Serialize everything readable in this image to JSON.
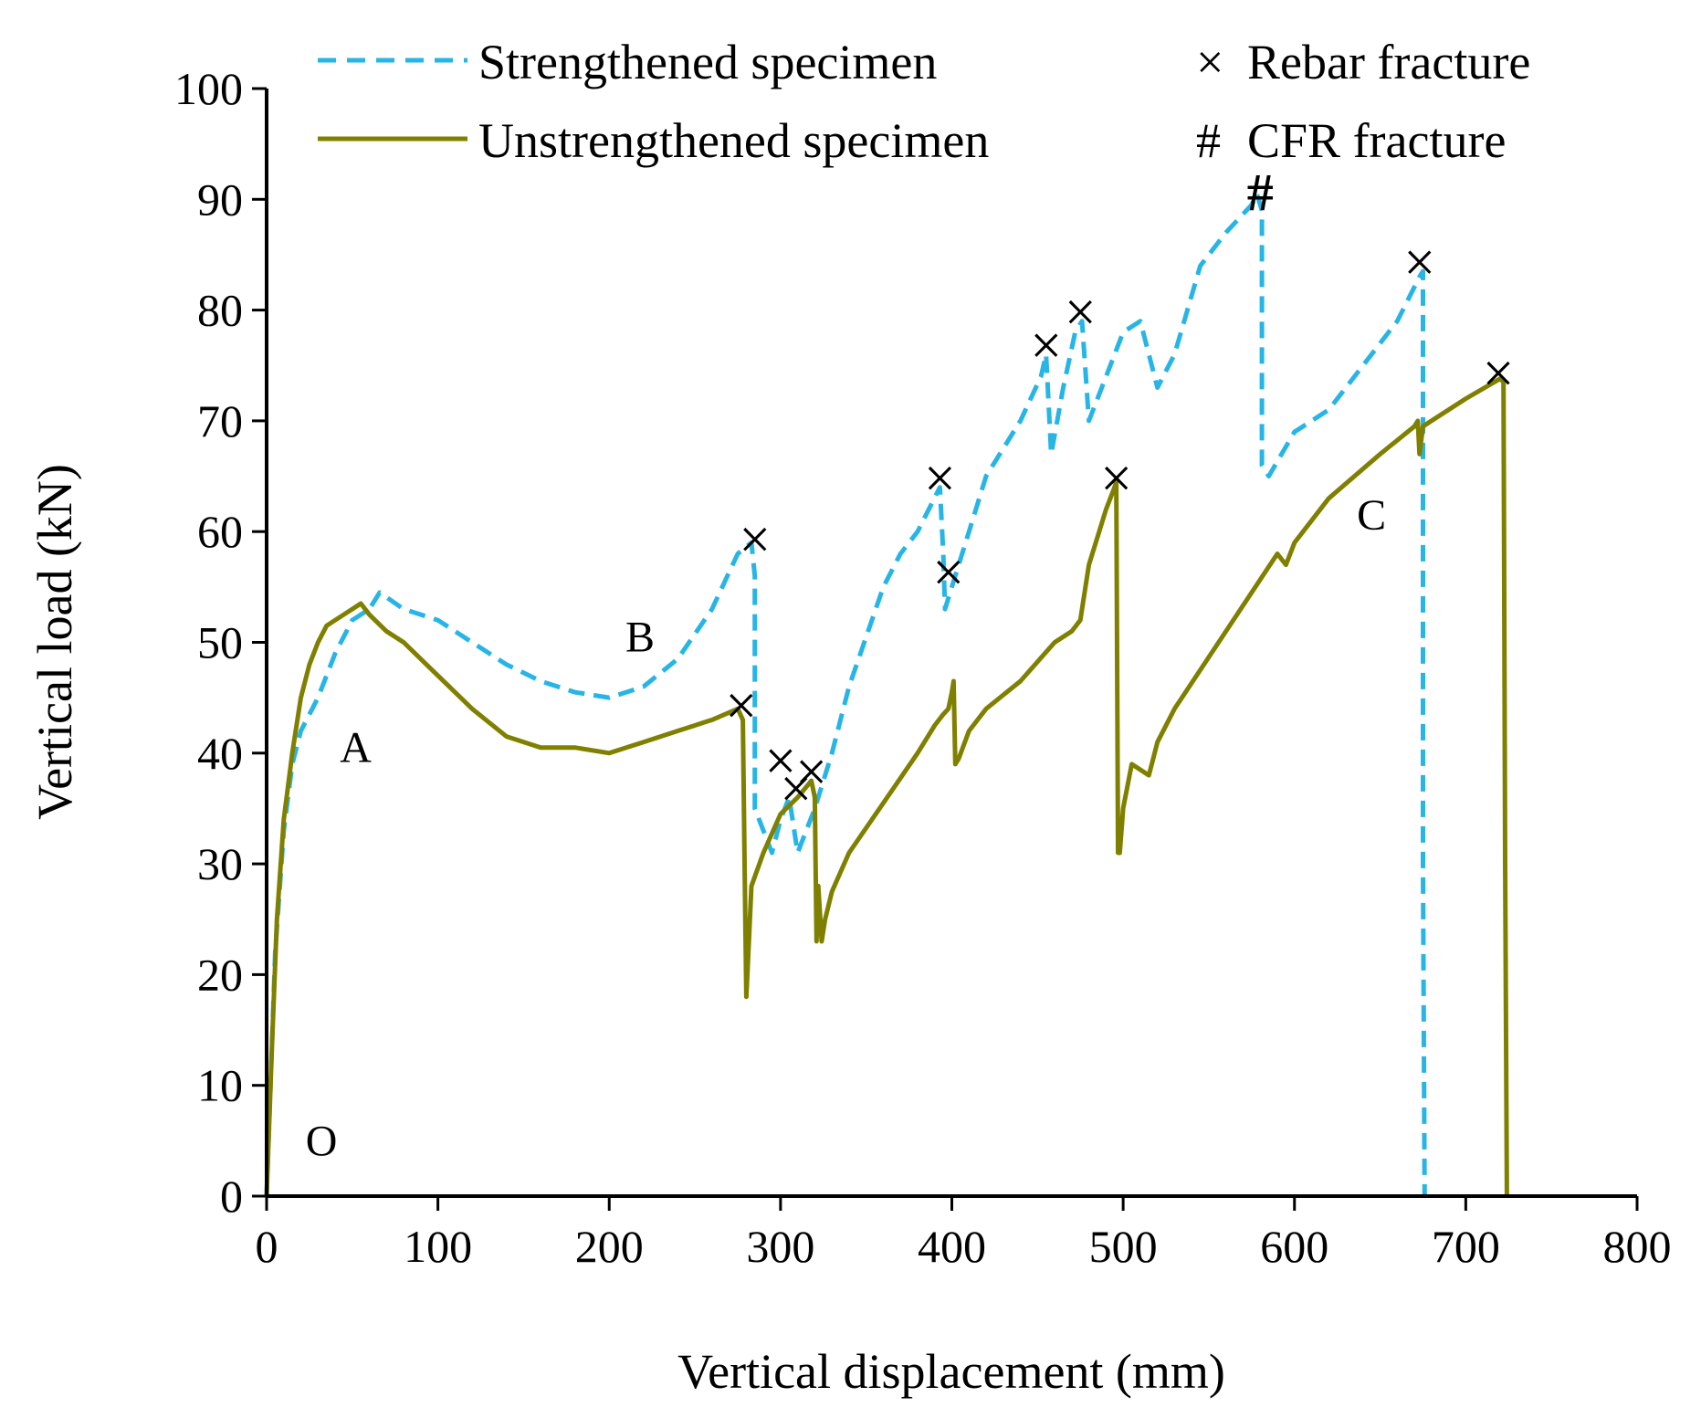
{
  "chart_data": {
    "type": "line",
    "title": "",
    "xlabel": "Vertical displacement (mm)",
    "ylabel": "Vertical load (kN)",
    "xlim": [
      0,
      800
    ],
    "ylim": [
      0,
      100
    ],
    "xticks": [
      0,
      100,
      200,
      300,
      400,
      500,
      600,
      700,
      800
    ],
    "yticks": [
      0,
      10,
      20,
      30,
      40,
      50,
      60,
      70,
      80,
      90,
      100
    ],
    "grid": false,
    "legend": {
      "position": "top",
      "series_entries": [
        "Strengthened specimen",
        "Unstrengthened specimen"
      ],
      "marker_entries": [
        {
          "symbol": "×",
          "label": "Rebar fracture"
        },
        {
          "symbol": "#",
          "label": "CFR fracture"
        }
      ]
    },
    "series": [
      {
        "name": "Strengthened specimen",
        "style": "dashed",
        "color": "#27B5E6",
        "x": [
          0,
          5,
          10,
          15,
          20,
          30,
          40,
          50,
          60,
          66,
          80,
          100,
          120,
          140,
          160,
          180,
          200,
          220,
          240,
          260,
          275,
          283,
          285,
          285,
          290,
          295,
          300,
          305,
          310,
          315,
          320,
          330,
          340,
          360,
          370,
          380,
          393,
          395,
          396,
          400,
          410,
          420,
          440,
          452,
          455,
          458,
          465,
          472,
          476,
          480,
          490,
          500,
          510,
          520,
          530,
          545,
          560,
          575,
          578,
          581,
          581,
          585,
          600,
          620,
          640,
          660,
          673,
          675,
          675,
          676
        ],
        "y": [
          0,
          22,
          33,
          39,
          42,
          45,
          49,
          52,
          53,
          54.5,
          53,
          52,
          50,
          48,
          46.5,
          45.5,
          45,
          46,
          48.5,
          53,
          58,
          59,
          56,
          35,
          33,
          31,
          34,
          36,
          31,
          33,
          35,
          40,
          46,
          55,
          58,
          60,
          64,
          58,
          53,
          55,
          60,
          65,
          70,
          74,
          76,
          67,
          73,
          78,
          79,
          70,
          74,
          78,
          79,
          73,
          76,
          84,
          87,
          89.5,
          90.5,
          89,
          66,
          65,
          69,
          71,
          75,
          79,
          83,
          83.5,
          30,
          0
        ]
      },
      {
        "name": "Unstrengthened specimen",
        "style": "solid",
        "color": "#808000",
        "x": [
          0,
          3,
          6,
          10,
          15,
          20,
          25,
          30,
          35,
          40,
          50,
          55,
          60,
          70,
          80,
          100,
          120,
          140,
          160,
          170,
          180,
          200,
          210,
          220,
          240,
          260,
          275,
          278,
          279,
          280,
          283,
          290,
          300,
          310,
          318,
          320,
          321,
          322,
          324,
          326,
          330,
          340,
          360,
          380,
          390,
          395,
          398,
          400,
          401,
          402,
          404,
          410,
          420,
          440,
          460,
          470,
          475,
          480,
          490,
          495,
          496,
          497,
          498,
          500,
          505,
          510,
          515,
          520,
          530,
          560,
          590,
          595,
          600,
          620,
          650,
          670,
          672,
          673,
          675,
          680,
          700,
          720,
          722,
          723,
          724
        ],
        "y": [
          0,
          13,
          25,
          34,
          40,
          45,
          48,
          50,
          51.5,
          52,
          53,
          53.5,
          52.5,
          51,
          50,
          47,
          44,
          41.5,
          40.5,
          40.5,
          40.5,
          40,
          40.5,
          41,
          42,
          43,
          44,
          43,
          30,
          18,
          28,
          31,
          34.5,
          36,
          37.5,
          36,
          23,
          28,
          23,
          25,
          27.5,
          31,
          35.5,
          40,
          42.5,
          43.5,
          44,
          45.5,
          46.5,
          39,
          39.5,
          42,
          44,
          46.5,
          50,
          51,
          52,
          57,
          62,
          64,
          64.5,
          31,
          31,
          35,
          39,
          38.5,
          38,
          41,
          44,
          51,
          58,
          57,
          59,
          63,
          67,
          69.5,
          70,
          67,
          69.5,
          70,
          72,
          73.8,
          73.5,
          30,
          0
        ]
      }
    ],
    "markers": [
      {
        "symbol": "×",
        "x": 277,
        "y": 44
      },
      {
        "symbol": "×",
        "x": 285,
        "y": 59
      },
      {
        "symbol": "×",
        "x": 300,
        "y": 39
      },
      {
        "symbol": "×",
        "x": 309,
        "y": 36.5
      },
      {
        "symbol": "×",
        "x": 318,
        "y": 38
      },
      {
        "symbol": "×",
        "x": 393,
        "y": 64.5
      },
      {
        "symbol": "×",
        "x": 398,
        "y": 56
      },
      {
        "symbol": "×",
        "x": 455,
        "y": 76.5
      },
      {
        "symbol": "×",
        "x": 475,
        "y": 79.5
      },
      {
        "symbol": "×",
        "x": 496,
        "y": 64.5
      },
      {
        "symbol": "×",
        "x": 673,
        "y": 84
      },
      {
        "symbol": "×",
        "x": 719,
        "y": 74
      },
      {
        "symbol": "#",
        "x": 580,
        "y": 90.5
      }
    ],
    "annotations": [
      {
        "text": "O",
        "x": 32,
        "y": 5
      },
      {
        "text": "A",
        "x": 52,
        "y": 40.5
      },
      {
        "text": "B",
        "x": 218,
        "y": 50.5
      },
      {
        "text": "C",
        "x": 645,
        "y": 61.5
      }
    ]
  }
}
